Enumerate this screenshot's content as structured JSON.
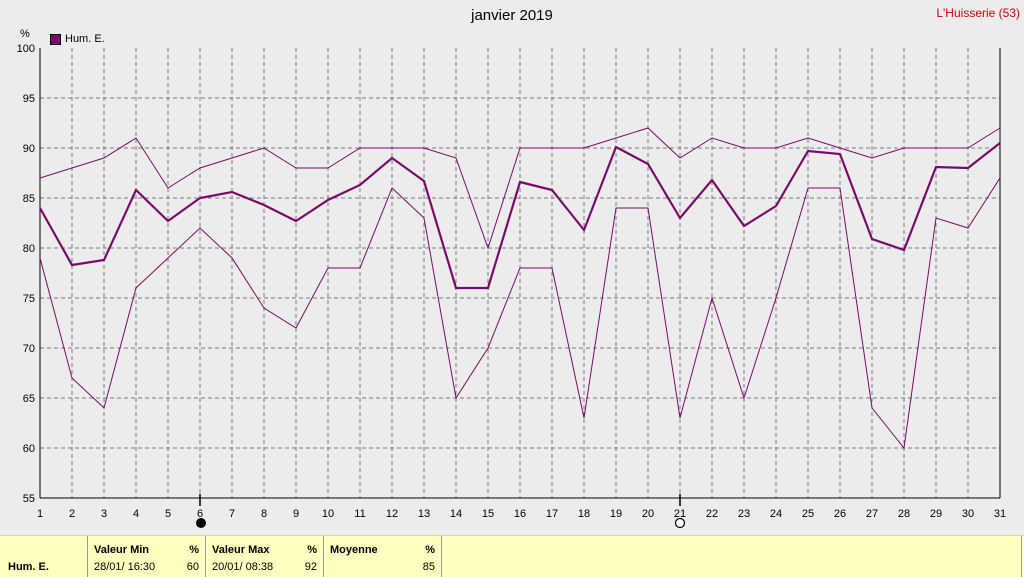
{
  "title": "janvier 2019",
  "station": "L'Huisserie (53)",
  "unit": "%",
  "legend": "Hum. E.",
  "colors": {
    "series": "#7a0a6a",
    "station": "#d40000",
    "stats_bg": "#ffffc0"
  },
  "moon": {
    "full_moon_day": 6,
    "new_moon_day": 21
  },
  "chart_data": {
    "type": "line",
    "title": "janvier 2019",
    "ylabel": "%",
    "ylim": [
      55,
      100
    ],
    "yticks": [
      55,
      60,
      65,
      70,
      75,
      80,
      85,
      90,
      95,
      100
    ],
    "x": [
      1,
      2,
      3,
      4,
      5,
      6,
      7,
      8,
      9,
      10,
      11,
      12,
      13,
      14,
      15,
      16,
      17,
      18,
      19,
      20,
      21,
      22,
      23,
      24,
      25,
      26,
      27,
      28,
      29,
      30,
      31
    ],
    "grid": true,
    "legend": "top-left",
    "series": [
      {
        "name": "Hum. E.",
        "role": "moyenne",
        "values": [
          84,
          78.3,
          78.8,
          85.8,
          82.7,
          85,
          85.6,
          84.3,
          82.7,
          84.8,
          86.3,
          89,
          86.7,
          76,
          76,
          86.6,
          85.8,
          81.8,
          90.1,
          88.4,
          83,
          86.8,
          82.2,
          84.2,
          89.7,
          89.4,
          80.9,
          79.8,
          88.1,
          88,
          90.5
        ]
      },
      {
        "role": "max",
        "values": [
          87,
          88,
          89,
          91,
          86,
          88,
          89,
          90,
          88,
          88,
          90,
          90,
          90,
          89,
          80,
          90,
          90,
          90,
          91,
          92,
          89,
          91,
          90,
          90,
          91,
          90,
          89,
          90,
          90,
          90,
          92
        ]
      },
      {
        "role": "min",
        "values": [
          79,
          67,
          64,
          76,
          79,
          82,
          79,
          74,
          72,
          78,
          78,
          86,
          83,
          65,
          70,
          78,
          78,
          63,
          84,
          84,
          63,
          75,
          65,
          75,
          86,
          86,
          64,
          60,
          83,
          82,
          87
        ]
      }
    ]
  },
  "stats": {
    "row_label": "Hum. E.",
    "min": {
      "header": "Valeur Min",
      "unit": "%",
      "date": "28/01/ 16:30",
      "value": "60"
    },
    "max": {
      "header": "Valeur Max",
      "unit": "%",
      "date": "20/01/ 08:38",
      "value": "92"
    },
    "avg": {
      "header": "Moyenne",
      "unit": "%",
      "value": "85"
    }
  }
}
